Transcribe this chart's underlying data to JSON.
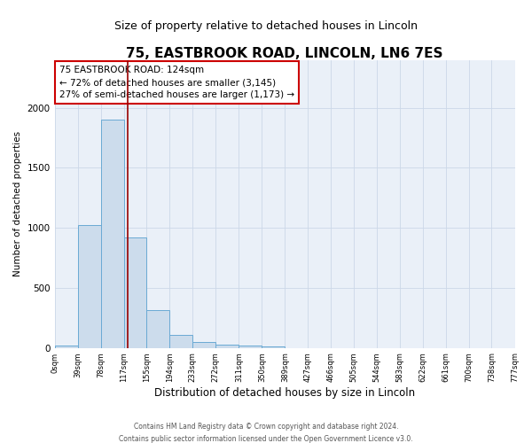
{
  "title": "75, EASTBROOK ROAD, LINCOLN, LN6 7ES",
  "subtitle": "Size of property relative to detached houses in Lincoln",
  "xlabel": "Distribution of detached houses by size in Lincoln",
  "ylabel": "Number of detached properties",
  "bin_edges": [
    0,
    39,
    78,
    117,
    155,
    194,
    233,
    272,
    311,
    350,
    389,
    427,
    466,
    505,
    544,
    583,
    622,
    661,
    700,
    738,
    777
  ],
  "bin_counts": [
    20,
    1020,
    1900,
    920,
    315,
    105,
    50,
    30,
    20,
    15,
    0,
    0,
    0,
    0,
    0,
    0,
    0,
    0,
    0,
    0
  ],
  "bar_facecolor": "#ccdcec",
  "bar_edgecolor": "#6aaad4",
  "vline_x": 124,
  "vline_color": "#990000",
  "annotation_title": "75 EASTBROOK ROAD: 124sqm",
  "annotation_line1": "← 72% of detached houses are smaller (3,145)",
  "annotation_line2": "27% of semi-detached houses are larger (1,173) →",
  "annotation_box_edgecolor": "#cc0000",
  "ylim": [
    0,
    2400
  ],
  "xlim_left": 0,
  "xlim_right": 777,
  "grid_color": "#ccd8e8",
  "tick_labels": [
    "0sqm",
    "39sqm",
    "78sqm",
    "117sqm",
    "155sqm",
    "194sqm",
    "233sqm",
    "272sqm",
    "311sqm",
    "350sqm",
    "389sqm",
    "427sqm",
    "466sqm",
    "505sqm",
    "544sqm",
    "583sqm",
    "622sqm",
    "661sqm",
    "700sqm",
    "738sqm",
    "777sqm"
  ],
  "footer_line1": "Contains HM Land Registry data © Crown copyright and database right 2024.",
  "footer_line2": "Contains public sector information licensed under the Open Government Licence v3.0.",
  "background_color": "#ffffff",
  "axes_background": "#eaf0f8",
  "title_fontsize": 11,
  "subtitle_fontsize": 9
}
